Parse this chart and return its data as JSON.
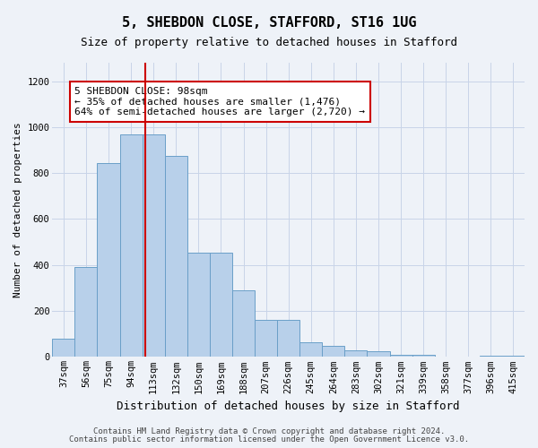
{
  "title1": "5, SHEBDON CLOSE, STAFFORD, ST16 1UG",
  "title2": "Size of property relative to detached houses in Stafford",
  "xlabel": "Distribution of detached houses by size in Stafford",
  "ylabel": "Number of detached properties",
  "categories": [
    "37sqm",
    "56sqm",
    "75sqm",
    "94sqm",
    "113sqm",
    "132sqm",
    "150sqm",
    "169sqm",
    "188sqm",
    "207sqm",
    "226sqm",
    "245sqm",
    "264sqm",
    "283sqm",
    "302sqm",
    "321sqm",
    "339sqm",
    "358sqm",
    "377sqm",
    "396sqm",
    "415sqm"
  ],
  "values": [
    80,
    390,
    845,
    970,
    970,
    875,
    455,
    455,
    290,
    160,
    160,
    65,
    50,
    30,
    25,
    8,
    8,
    0,
    0,
    5,
    5
  ],
  "bar_color": "#b8d0ea",
  "bar_edge_color": "#6a9fc8",
  "grid_color": "#c8d4e8",
  "vline_x": 3.65,
  "vline_color": "#cc0000",
  "annotation_text": "5 SHEBDON CLOSE: 98sqm\n← 35% of detached houses are smaller (1,476)\n64% of semi-detached houses are larger (2,720) →",
  "annotation_box_color": "#ffffff",
  "annotation_box_edge": "#cc0000",
  "footer1": "Contains HM Land Registry data © Crown copyright and database right 2024.",
  "footer2": "Contains public sector information licensed under the Open Government Licence v3.0.",
  "ylim": [
    0,
    1280
  ],
  "yticks": [
    0,
    200,
    400,
    600,
    800,
    1000,
    1200
  ],
  "background_color": "#eef2f8",
  "title1_fontsize": 11,
  "title2_fontsize": 9,
  "annot_fontsize": 8,
  "ylabel_fontsize": 8,
  "xlabel_fontsize": 9,
  "tick_fontsize": 7.5
}
